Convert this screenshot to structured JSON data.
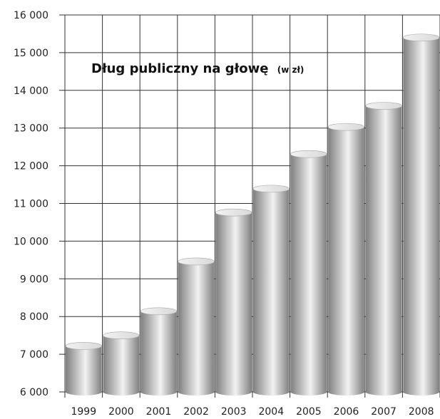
{
  "chart_data": {
    "type": "bar",
    "title": "Dług publiczny na głowę",
    "subtitle": "(w zł)",
    "categories": [
      "1999",
      "2000",
      "2001",
      "2002",
      "2003",
      "2004",
      "2005",
      "2006",
      "2007",
      "2008"
    ],
    "values": [
      7220,
      7500,
      8140,
      9460,
      10760,
      11390,
      12310,
      13030,
      13590,
      15400
    ],
    "ylim": [
      6000,
      16000
    ],
    "yticks": [
      6000,
      7000,
      8000,
      9000,
      10000,
      11000,
      12000,
      13000,
      14000,
      15000,
      16000
    ],
    "ytick_labels": [
      "6 000",
      "7 000",
      "8 000",
      "9 000",
      "10 000",
      "11 000",
      "12 000",
      "13 000",
      "14 000",
      "15 000",
      "16 000"
    ],
    "grid": true,
    "legend": "none",
    "bar_style": "cylinder",
    "colors": {
      "bar_dark": "#7f7f7f",
      "bar_light": "#f2f2f2",
      "bar_top": "#d9d9d9",
      "grid": "#333333"
    }
  }
}
